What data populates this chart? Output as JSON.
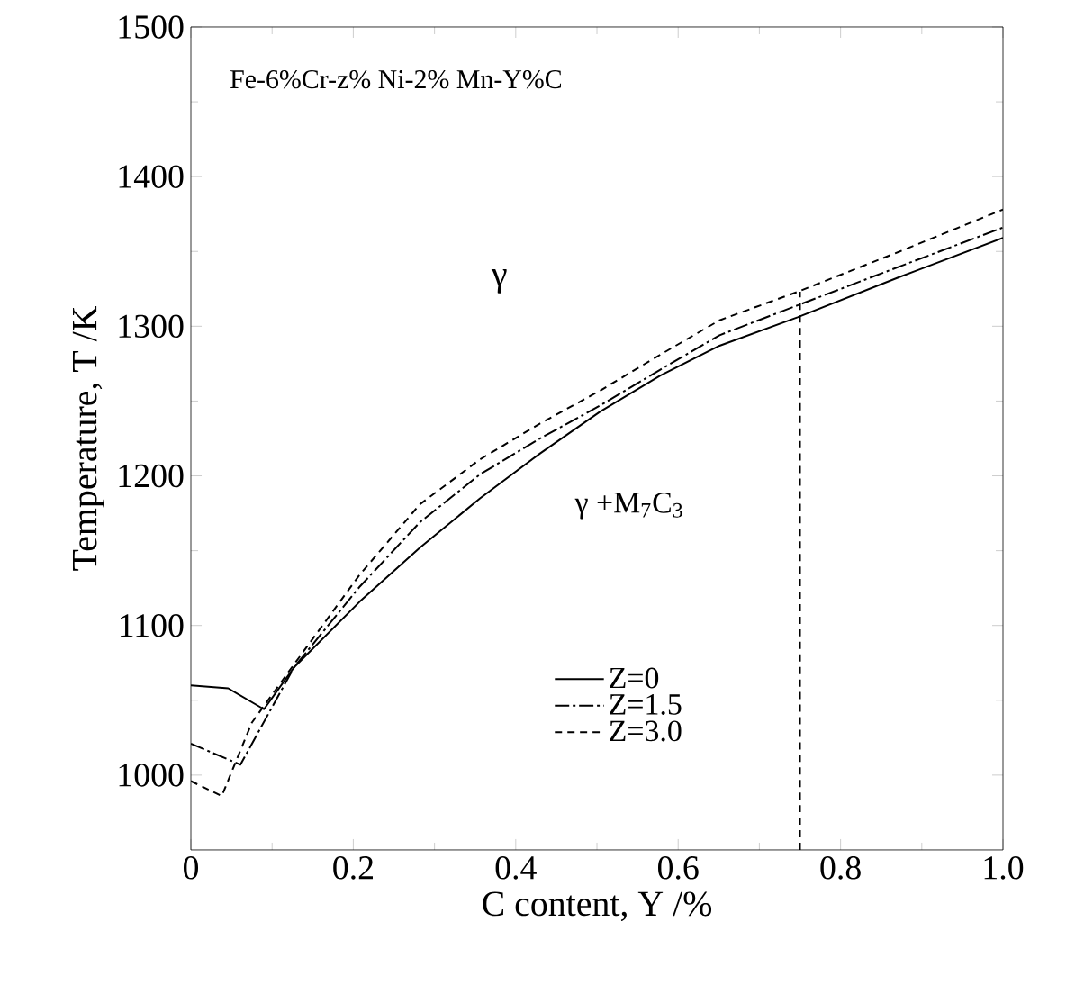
{
  "chart_data": {
    "type": "line",
    "xlabel": "C content, Y /%",
    "ylabel": "Temperature, T /K",
    "annotations": [
      "Fe-6%Cr-z% Ni-2% Mn-Y%C",
      "γ",
      "γ +M$_{7}$C$_{3}$"
    ],
    "xlim": [
      0,
      1
    ],
    "ylim": [
      950,
      1500
    ],
    "xticks": [
      0,
      0.2,
      0.4,
      0.6,
      0.8,
      {
        "value": 1,
        "label": "1.0"
      }
    ],
    "yticks": [
      1000,
      1100,
      1200,
      1300,
      1400,
      1500
    ],
    "legend": "bottom",
    "grid": false,
    "marker": "none",
    "series": [
      {
        "name": "Z=0",
        "color": "#000000",
        "line_style": "solid",
        "x": [
          0,
          0.046,
          0.09,
          0.127,
          0.208,
          0.282,
          0.356,
          0.43,
          0.504,
          0.578,
          0.651,
          0.747,
          0.873,
          1.0
        ],
        "values": [
          1060,
          1058,
          1044,
          1072,
          1116,
          1152,
          1185,
          1215,
          1243,
          1267,
          1287,
          1306,
          1333,
          1359
        ]
      },
      {
        "name": "Z=1.5",
        "color": "#000000",
        "line_style": "dashdot",
        "x": [
          0,
          0.061,
          0.127,
          0.208,
          0.282,
          0.356,
          0.43,
          0.504,
          0.578,
          0.651,
          0.747,
          0.873,
          1.0
        ],
        "values": [
          1021,
          1007,
          1072,
          1126,
          1169,
          1201,
          1225,
          1247,
          1271,
          1294,
          1314,
          1340,
          1366
        ]
      },
      {
        "name": "Z=3.0",
        "color": "#000000",
        "line_style": "dashed",
        "x": [
          0,
          0.038,
          0.075,
          0.127,
          0.208,
          0.282,
          0.356,
          0.43,
          0.504,
          0.578,
          0.651,
          0.747,
          0.873,
          1.0
        ],
        "values": [
          996,
          986,
          1035,
          1074,
          1134,
          1181,
          1211,
          1235,
          1257,
          1281,
          1304,
          1323,
          1350,
          1378
        ]
      },
      {
        "color": "#000000",
        "line_style": "dashed",
        "x": [
          0.75,
          0.75
        ],
        "values": [
          950,
          1323
        ]
      }
    ]
  }
}
